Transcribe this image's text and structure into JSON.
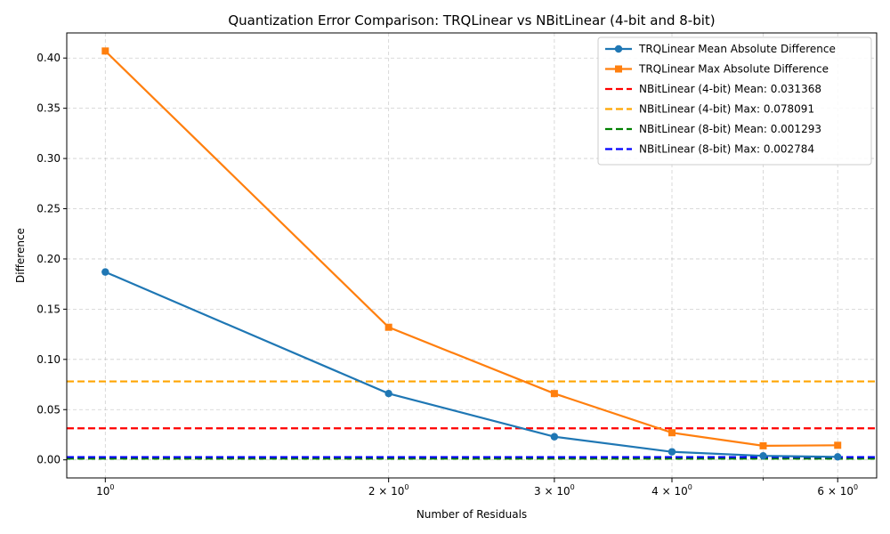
{
  "chart_data": {
    "type": "line",
    "title": "Quantization Error Comparison: TRQLinear vs NBitLinear (4-bit and 8-bit)",
    "xlabel": "Number of Residuals",
    "ylabel": "Difference",
    "xscale": "log",
    "xlim": [
      0.91,
      6.6
    ],
    "ylim": [
      -0.018,
      0.425
    ],
    "grid": true,
    "legend_position": "top-right",
    "x": [
      1,
      2,
      3,
      4,
      5,
      6
    ],
    "x_ticks": [
      {
        "value": 1,
        "base": "10",
        "exp": "0"
      },
      {
        "value": 2,
        "base": "2 × 10",
        "exp": "0"
      },
      {
        "value": 3,
        "base": "3 × 10",
        "exp": "0"
      },
      {
        "value": 4,
        "base": "4 × 10",
        "exp": "0"
      },
      {
        "value": 6,
        "base": "6 × 10",
        "exp": "0"
      }
    ],
    "y_ticks": [
      {
        "value": 0.0,
        "label": "0.00"
      },
      {
        "value": 0.05,
        "label": "0.05"
      },
      {
        "value": 0.1,
        "label": "0.10"
      },
      {
        "value": 0.15,
        "label": "0.15"
      },
      {
        "value": 0.2,
        "label": "0.20"
      },
      {
        "value": 0.25,
        "label": "0.25"
      },
      {
        "value": 0.3,
        "label": "0.30"
      },
      {
        "value": 0.35,
        "label": "0.35"
      },
      {
        "value": 0.4,
        "label": "0.40"
      }
    ],
    "series": [
      {
        "name": "TRQLinear Mean Absolute Difference",
        "marker": "circle",
        "color": "#1f77b4",
        "values": [
          0.187,
          0.066,
          0.023,
          0.008,
          0.004,
          0.003
        ]
      },
      {
        "name": "TRQLinear Max Absolute Difference",
        "marker": "square",
        "color": "#ff7f0e",
        "values": [
          0.407,
          0.132,
          0.066,
          0.027,
          0.014,
          0.0145
        ]
      }
    ],
    "reference_lines": [
      {
        "name": "NBitLinear (4-bit) Mean: 0.031368",
        "value": 0.031368,
        "color": "#ff0000"
      },
      {
        "name": "NBitLinear (4-bit) Max: 0.078091",
        "value": 0.078091,
        "color": "#ffa500"
      },
      {
        "name": "NBitLinear (8-bit) Mean: 0.001293",
        "value": 0.001293,
        "color": "#008000"
      },
      {
        "name": "NBitLinear (8-bit) Max: 0.002784",
        "value": 0.002784,
        "color": "#0000ff"
      }
    ]
  }
}
